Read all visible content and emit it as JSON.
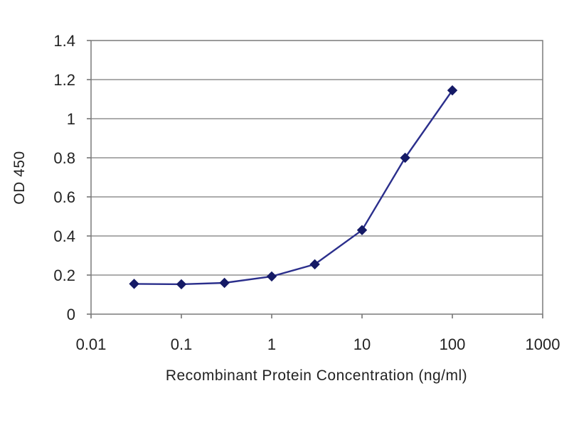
{
  "chart_data": {
    "type": "line",
    "title": "",
    "xlabel": "Recombinant Protein Concentration (ng/ml)",
    "ylabel": "OD 450",
    "xscale": "log",
    "xlim": [
      0.01,
      1000
    ],
    "ylim": [
      0,
      1.4
    ],
    "xticks": [
      "0.01",
      "0.1",
      "1",
      "10",
      "100",
      "1000"
    ],
    "yticks": [
      "0",
      "0.2",
      "0.4",
      "0.6",
      "0.8",
      "1",
      "1.2",
      "1.4"
    ],
    "grid": "horizontal",
    "legend": "none",
    "series": [
      {
        "x": [
          0.03,
          0.1,
          0.3,
          1,
          3,
          10,
          30,
          100
        ],
        "y": [
          0.155,
          0.153,
          0.16,
          0.193,
          0.255,
          0.43,
          0.8,
          1.145
        ],
        "color": "#2b2f8c",
        "marker": "diamond",
        "marker_color": "#151a66"
      }
    ],
    "colors": {
      "plot_border": "#7a7a7a",
      "gridline": "#7a7a7a",
      "axis": "#555555"
    }
  }
}
